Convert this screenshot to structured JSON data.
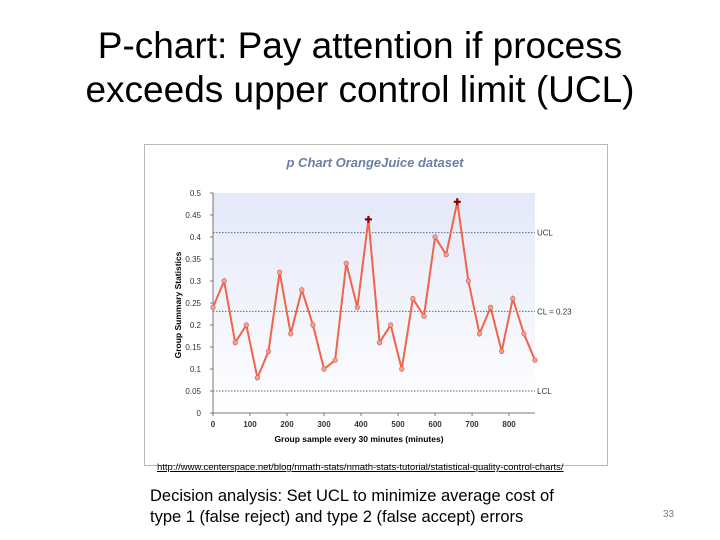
{
  "slide": {
    "title_line1": "P-chart: Pay attention if process",
    "title_line2": "exceeds upper control limit (UCL)",
    "source_url": "http://www.centerspace.net/blog/nmath-stats/nmath-stats-tutorial/statistical-quality-control-charts/",
    "caption_line1": "Decision analysis:  Set UCL to minimize average cost of",
    "caption_line2": "type 1 (false reject) and type 2 (false accept) errors",
    "page_number": "33"
  },
  "chart_data": {
    "type": "line",
    "title": "p Chart OrangeJuice dataset",
    "xlabel": "Group sample every 30 minutes (minutes)",
    "ylabel": "Group Summary Statistics",
    "xlim": [
      0,
      870
    ],
    "ylim": [
      0,
      0.5
    ],
    "x_ticks": [
      "0",
      "100",
      "200",
      "300",
      "400",
      "500",
      "600",
      "700",
      "800"
    ],
    "x_tick_values": [
      0,
      100,
      200,
      300,
      400,
      500,
      600,
      700,
      800
    ],
    "y_ticks": [
      "0",
      "0.05",
      "0.1",
      "0.15",
      "0.2",
      "0.25",
      "0.3",
      "0.35",
      "0.4",
      "0.45",
      "0.5"
    ],
    "y_tick_values": [
      0,
      0.05,
      0.1,
      0.15,
      0.2,
      0.25,
      0.3,
      0.35,
      0.4,
      0.45,
      0.5
    ],
    "series": [
      {
        "values": [
          0.24,
          0.3,
          0.16,
          0.2,
          0.08,
          0.14,
          0.32,
          0.18,
          0.28,
          0.2,
          0.1,
          0.12,
          0.34,
          0.24,
          0.44,
          0.16,
          0.2,
          0.1,
          0.26,
          0.22,
          0.4,
          0.36,
          0.48,
          0.3,
          0.18,
          0.24,
          0.14,
          0.26,
          0.18,
          0.12
        ],
        "x": [
          0,
          30,
          60,
          90,
          120,
          150,
          180,
          210,
          240,
          270,
          300,
          330,
          360,
          390,
          420,
          450,
          480,
          510,
          540,
          570,
          600,
          630,
          660,
          690,
          720,
          750,
          780,
          810,
          840,
          870
        ],
        "out_of_control_indices": [
          14,
          22
        ],
        "color": "#f0644a"
      }
    ],
    "control_limits": [
      {
        "label": "UCL",
        "value": 0.41
      },
      {
        "label": "CL = 0.23",
        "value": 0.231
      },
      {
        "label": "LCL",
        "value": 0.05
      }
    ],
    "grid": false,
    "legend": "none",
    "colors": {
      "line": "#f0644a",
      "marker": "#f6a094",
      "out_of_control": "#8b0000",
      "limit_line": "#5a6a88",
      "title": "#6a7fa8",
      "plot_bg_top": "#e4e8f8",
      "plot_bg_bottom": "#ffffff"
    }
  }
}
